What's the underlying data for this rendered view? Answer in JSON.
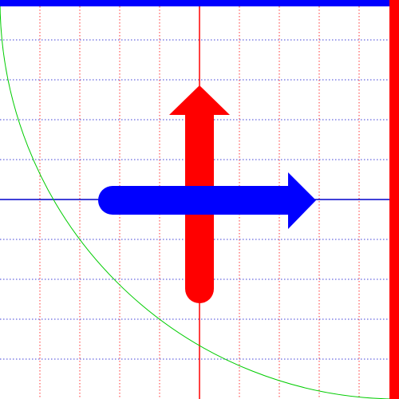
{
  "diagram": {
    "grid": {
      "vertical_line_color": "#ff0000",
      "horizontal_line_color": "#0000cc",
      "divisions": 10,
      "style": "dotted"
    },
    "axes": {
      "vertical_axis_color": "#ff0000",
      "horizontal_axis_color": "#0000cc"
    },
    "frame": {
      "top_border_color": "#0000ff",
      "right_border_color": "#ff0000"
    },
    "arc": {
      "color": "#00cc00",
      "shape": "quarter-circle"
    },
    "arrows": [
      {
        "name": "vertical-arrow",
        "direction": "up",
        "color": "#ff0000"
      },
      {
        "name": "horizontal-arrow",
        "direction": "right",
        "color": "#0000ff"
      }
    ]
  }
}
